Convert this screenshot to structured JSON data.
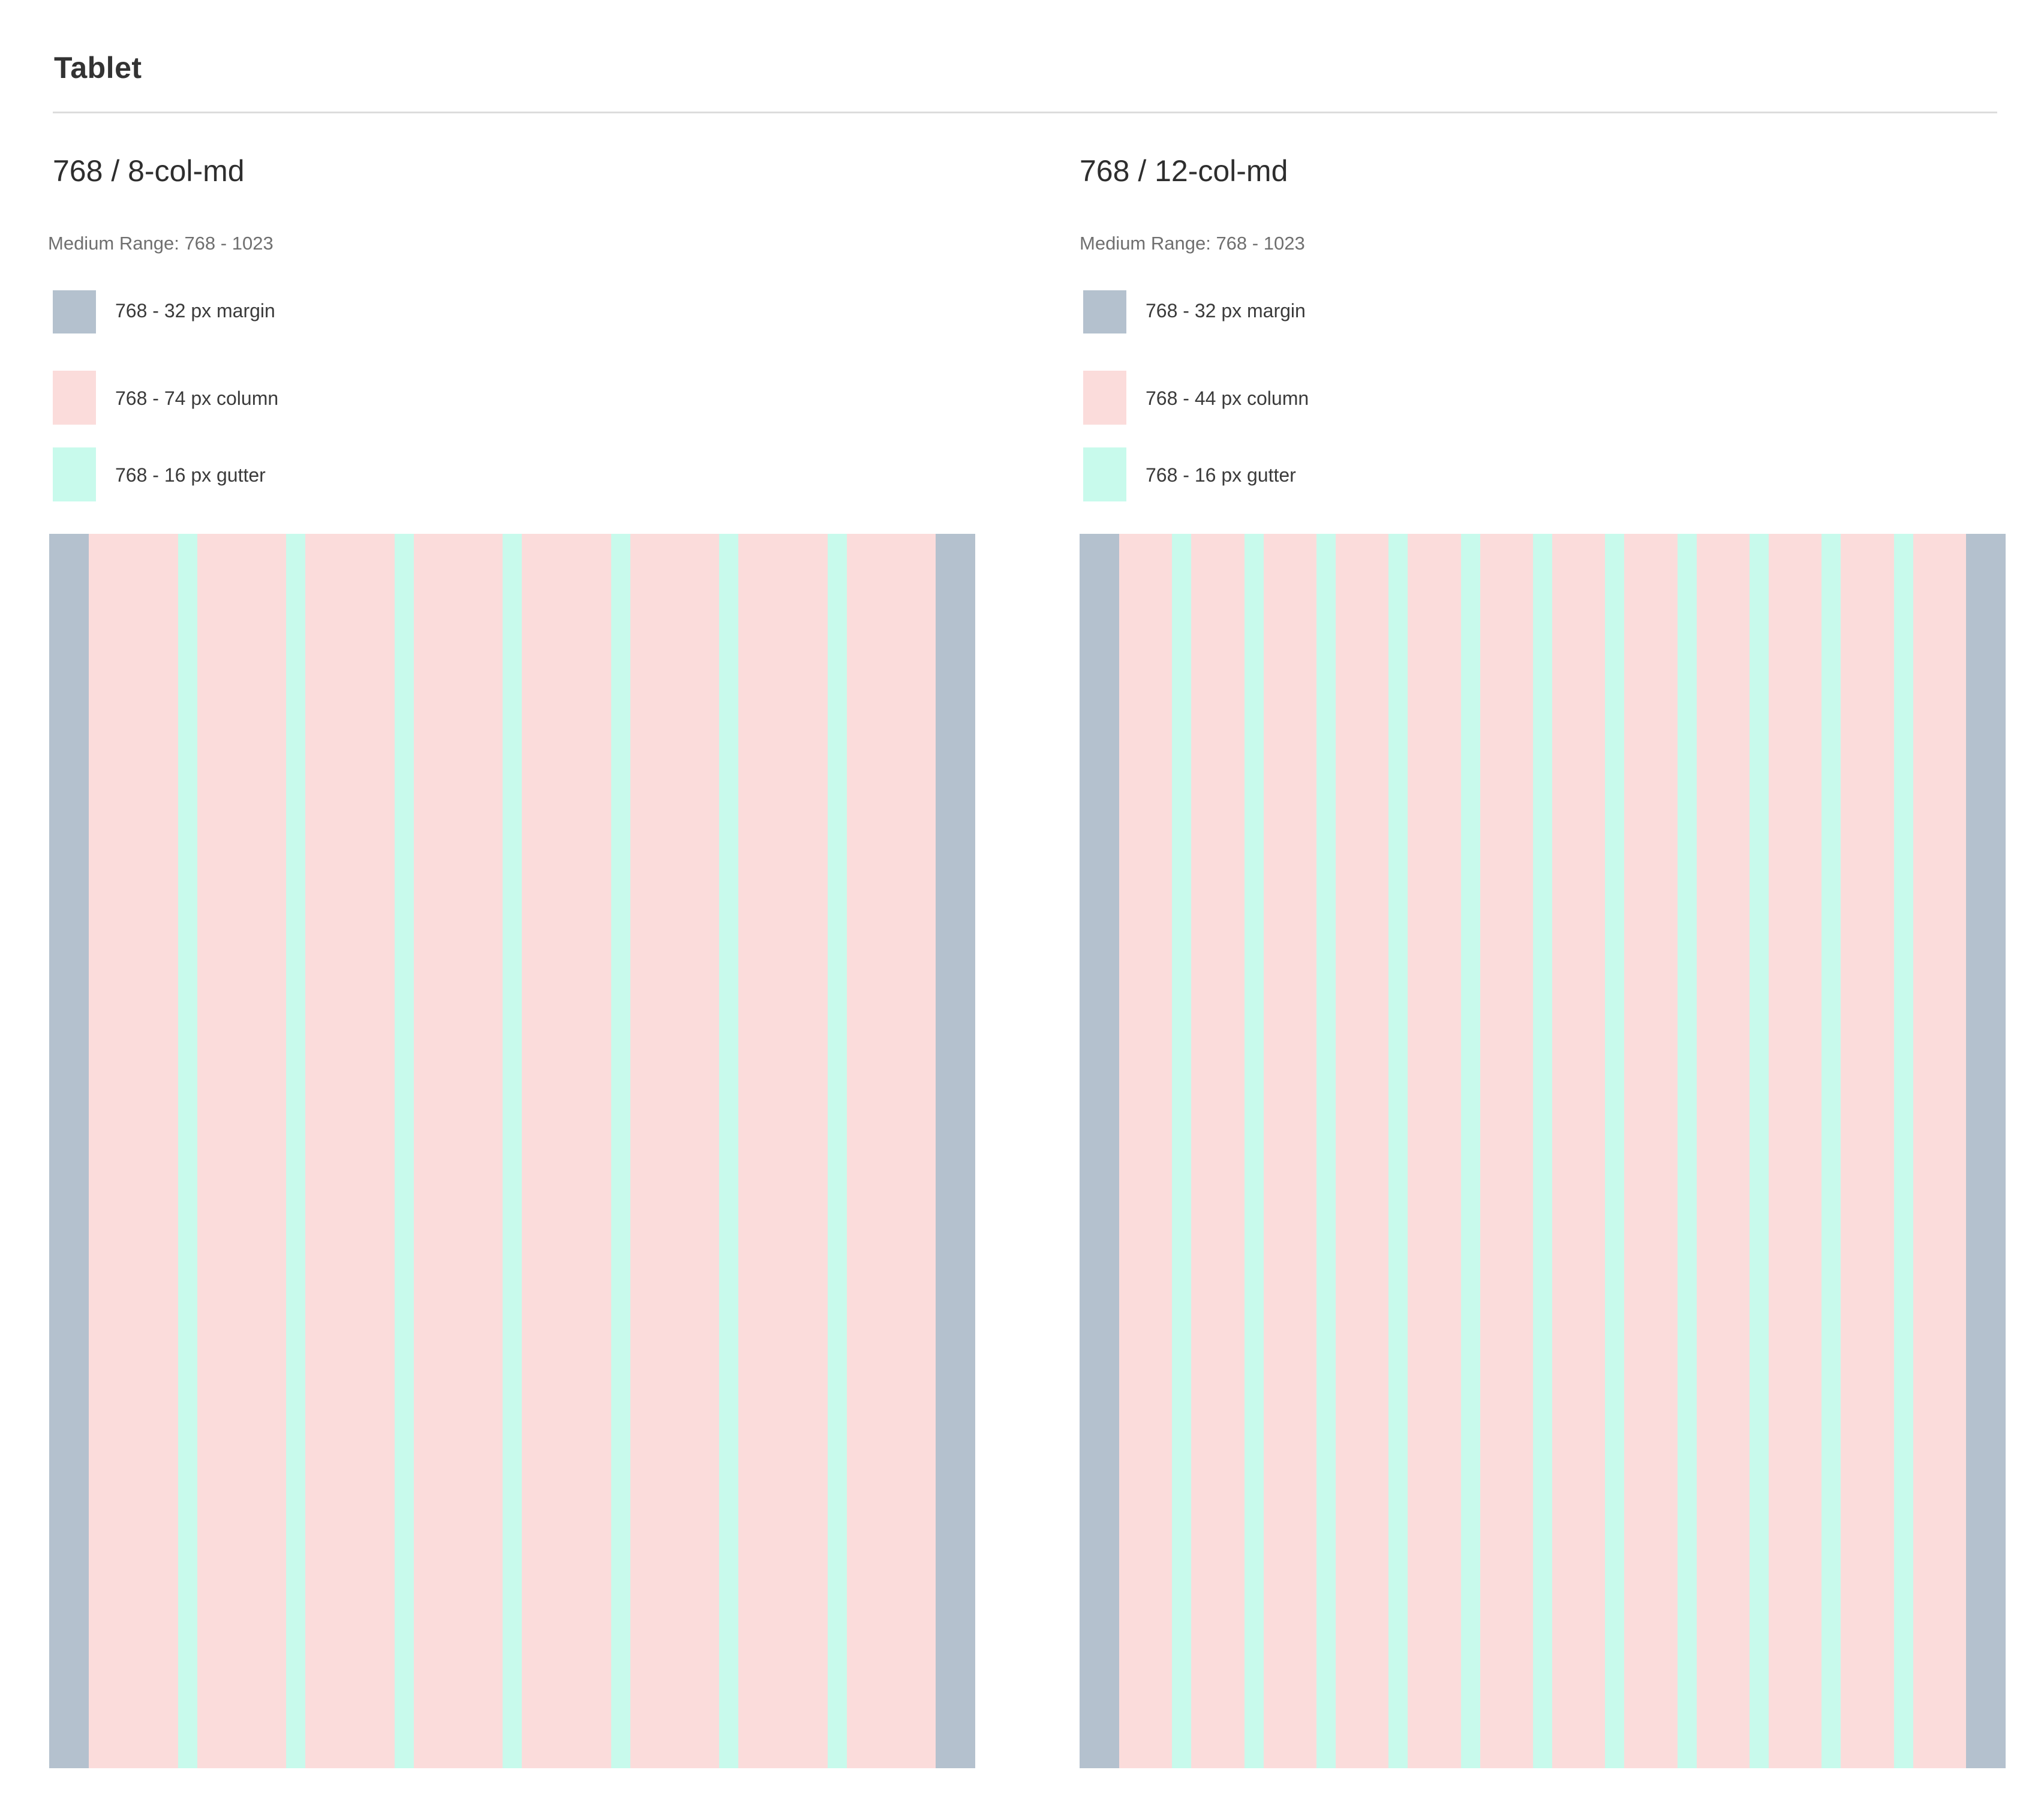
{
  "section": {
    "title": "Tablet"
  },
  "colors": {
    "margin": "#b4c1ce",
    "column": "#fbdcdb",
    "gutter": "#c8faec",
    "divider": "#dcdcdc"
  },
  "grids": [
    {
      "title": "768 / 8-col-md",
      "range": "Medium Range: 768 - 1023",
      "columns": 8,
      "legend": {
        "margin": "768 - 32 px margin",
        "column": "768 - 74 px column",
        "gutter": "768 - 16 px gutter"
      }
    },
    {
      "title": "768 / 12-col-md",
      "range": "Medium Range: 768 - 1023",
      "columns": 12,
      "legend": {
        "margin": "768 - 32 px margin",
        "column": "768 - 44 px column",
        "gutter": "768 - 16 px gutter"
      }
    }
  ]
}
